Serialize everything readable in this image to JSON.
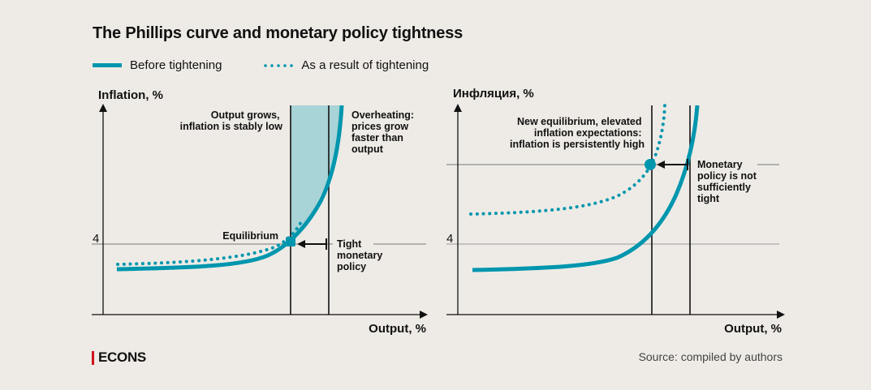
{
  "title": "The Phillips curve and monetary policy tightness",
  "legend": [
    {
      "label": "Before tightening",
      "style": "solid"
    },
    {
      "label": "As a result of tightening",
      "style": "dotted"
    }
  ],
  "colors": {
    "curve": "#0096ae",
    "shade": "#a8d3d7",
    "background": "#eeebe6",
    "logo_bar": "#d0121b"
  },
  "left_panel": {
    "y_label": "Inflation, %",
    "x_label": "Output, %",
    "y_tick": "4",
    "annotations": {
      "stable": [
        "Output grows,",
        "inflation is stably low"
      ],
      "overheating": [
        "Overheating:",
        "prices grow",
        "faster than",
        "output"
      ],
      "equilibrium": "Equilibrium",
      "tight": [
        "Tight",
        "monetary",
        "policy"
      ]
    }
  },
  "right_panel": {
    "y_label": "Инфляция, %",
    "x_label": "Output, %",
    "y_tick": "4",
    "annotations": {
      "new_eq": [
        "New equilibrium, elevated",
        "inflation expectations:",
        "inflation is persistently high"
      ],
      "not_tight": [
        "Monetary",
        "policy is not",
        "sufficiently",
        "tight"
      ]
    }
  },
  "footer": {
    "logo": "ECONS",
    "source": "Source: compiled by authors"
  }
}
